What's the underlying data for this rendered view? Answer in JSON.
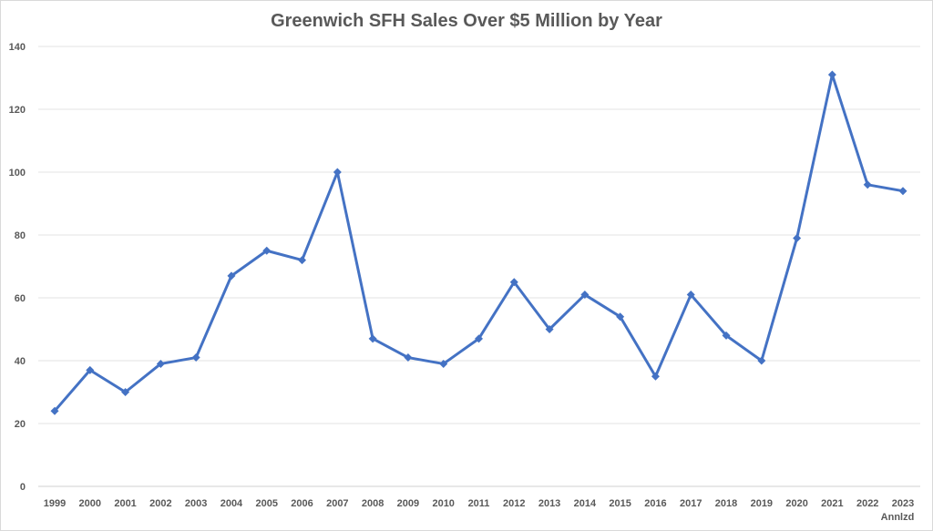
{
  "chart_data": {
    "type": "line",
    "title": "Greenwich SFH Sales Over $5 Million by Year",
    "xlabel": "",
    "ylabel": "",
    "categories": [
      "1999",
      "2000",
      "2001",
      "2002",
      "2003",
      "2004",
      "2005",
      "2006",
      "2007",
      "2008",
      "2009",
      "2010",
      "2011",
      "2012",
      "2013",
      "2014",
      "2015",
      "2016",
      "2017",
      "2018",
      "2019",
      "2020",
      "2021",
      "2022",
      "2023"
    ],
    "category_sublabels": {
      "2023": "Annlzd"
    },
    "series": [
      {
        "values": [
          24,
          37,
          30,
          39,
          41,
          67,
          75,
          72,
          100,
          47,
          41,
          39,
          47,
          65,
          50,
          61,
          54,
          35,
          61,
          48,
          40,
          79,
          131,
          96,
          94
        ],
        "color": "#4472c4",
        "marker": "diamond"
      }
    ],
    "ylim": [
      0,
      140
    ],
    "yticks": [
      0,
      20,
      40,
      60,
      80,
      100,
      120,
      140
    ],
    "grid": "horizontal",
    "legend": "none"
  }
}
